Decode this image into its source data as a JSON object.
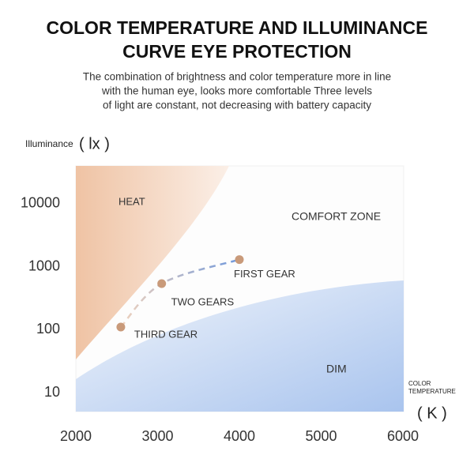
{
  "chart_data": {
    "type": "scatter",
    "title": [
      "COLOR TEMPERATURE AND ILLUMINANCE",
      "CURVE EYE PROTECTION"
    ],
    "subtitle": [
      "The combination of brightness and color temperature more in line",
      "with the human eye, looks more comfortable Three levels",
      "of light are constant, not decreasing with battery capacity"
    ],
    "y_label": "Illuminance",
    "y_unit": "( lx )",
    "x_label": [
      "COLOR",
      "TEMPERATURE"
    ],
    "x_unit": "( K )",
    "annotations": [
      "HEAT",
      "COMFORT ZONE",
      "DIM"
    ],
    "ylog": true,
    "xlim": [
      2000,
      6000
    ],
    "xticks": [
      2000,
      3000,
      4000,
      5000,
      6000
    ],
    "ylim": [
      5,
      40000
    ],
    "yticks": [
      10,
      100,
      1000,
      10000
    ],
    "series": [
      {
        "color": "#c99a7a",
        "labels": [
          "THIRD GEAR",
          "TWO GEARS",
          "FIRST GEAR"
        ],
        "x": [
          2550,
          3050,
          4000
        ],
        "values": [
          110,
          540,
          1300
        ]
      }
    ]
  }
}
